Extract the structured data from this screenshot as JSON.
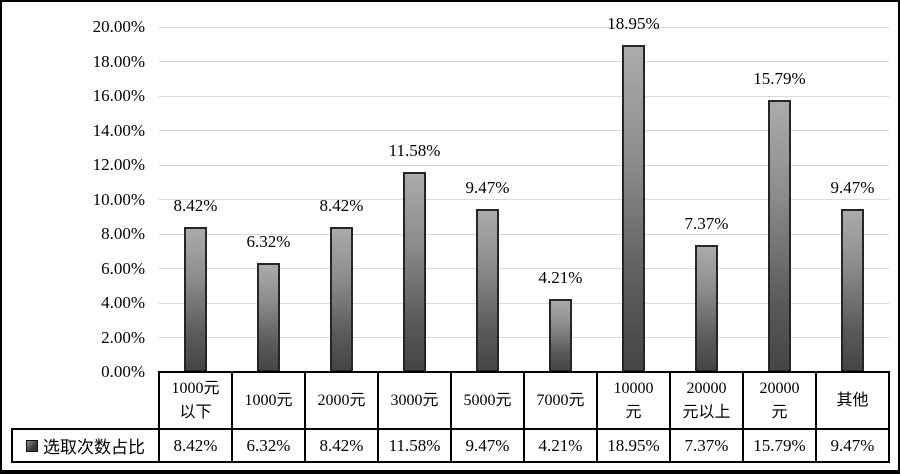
{
  "chart_data": {
    "type": "bar",
    "title": "",
    "categories": [
      "1000元以下",
      "1000元",
      "2000元",
      "3000元",
      "5000元",
      "7000元",
      "10000元",
      "20000元以上",
      "20000元",
      "其他"
    ],
    "category_display": [
      "1000元\n以下",
      "1000元",
      "2000元",
      "3000元",
      "5000元",
      "7000元",
      "10000\n元",
      "20000\n元以上",
      "20000\n元",
      "其他"
    ],
    "series": [
      {
        "name": "选取次数占比",
        "values": [
          8.42,
          6.32,
          8.42,
          11.58,
          9.47,
          4.21,
          18.95,
          7.37,
          15.79,
          9.47
        ]
      }
    ],
    "value_labels": [
      "8.42%",
      "6.32%",
      "8.42%",
      "11.58%",
      "9.47%",
      "4.21%",
      "18.95%",
      "7.37%",
      "15.79%",
      "9.47%"
    ],
    "table_row_values": [
      "8.42%",
      "6.32%",
      "8.42%",
      "11.58%",
      "9.47%",
      "4.21%",
      "18.95%",
      "7.37%",
      "15.79%",
      "9.47%"
    ],
    "xlabel": "",
    "ylabel": "",
    "ylim": [
      0,
      20
    ],
    "y_tick_step": 2,
    "y_tick_labels": [
      "0.00%",
      "2.00%",
      "4.00%",
      "6.00%",
      "8.00%",
      "10.00%",
      "12.00%",
      "14.00%",
      "16.00%",
      "18.00%",
      "20.00%"
    ],
    "grid": true,
    "legend": {
      "label": "选取次数占比",
      "position": "bottom-table-row-header"
    },
    "colors": {
      "bar_gradient_top": "#ababab",
      "bar_gradient_bottom": "#454545",
      "bar_border": "#262626",
      "gridline": "#d9d9d9",
      "text": "#000000",
      "table_border": "#000000",
      "background": "#ffffff"
    }
  }
}
